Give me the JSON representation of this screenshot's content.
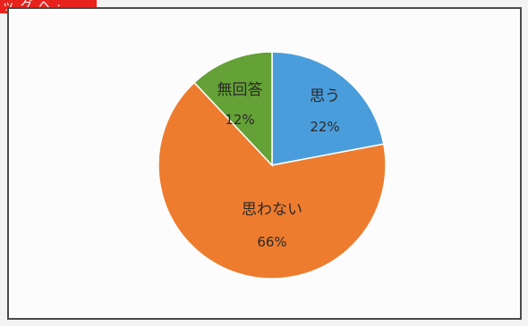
{
  "header": {
    "tab_text": "ッ  グ ヘ ·"
  },
  "chart_data": {
    "type": "pie",
    "title": "",
    "slices": [
      {
        "label": "思う",
        "value": 22,
        "display": "22%",
        "color": "#4a9ddb"
      },
      {
        "label": "思わない",
        "value": 66,
        "display": "66%",
        "color": "#ee7c2f"
      },
      {
        "label": "無回答",
        "value": 12,
        "display": "12%",
        "color": "#64a136"
      }
    ],
    "legend": "none",
    "data_labels": "inside"
  }
}
